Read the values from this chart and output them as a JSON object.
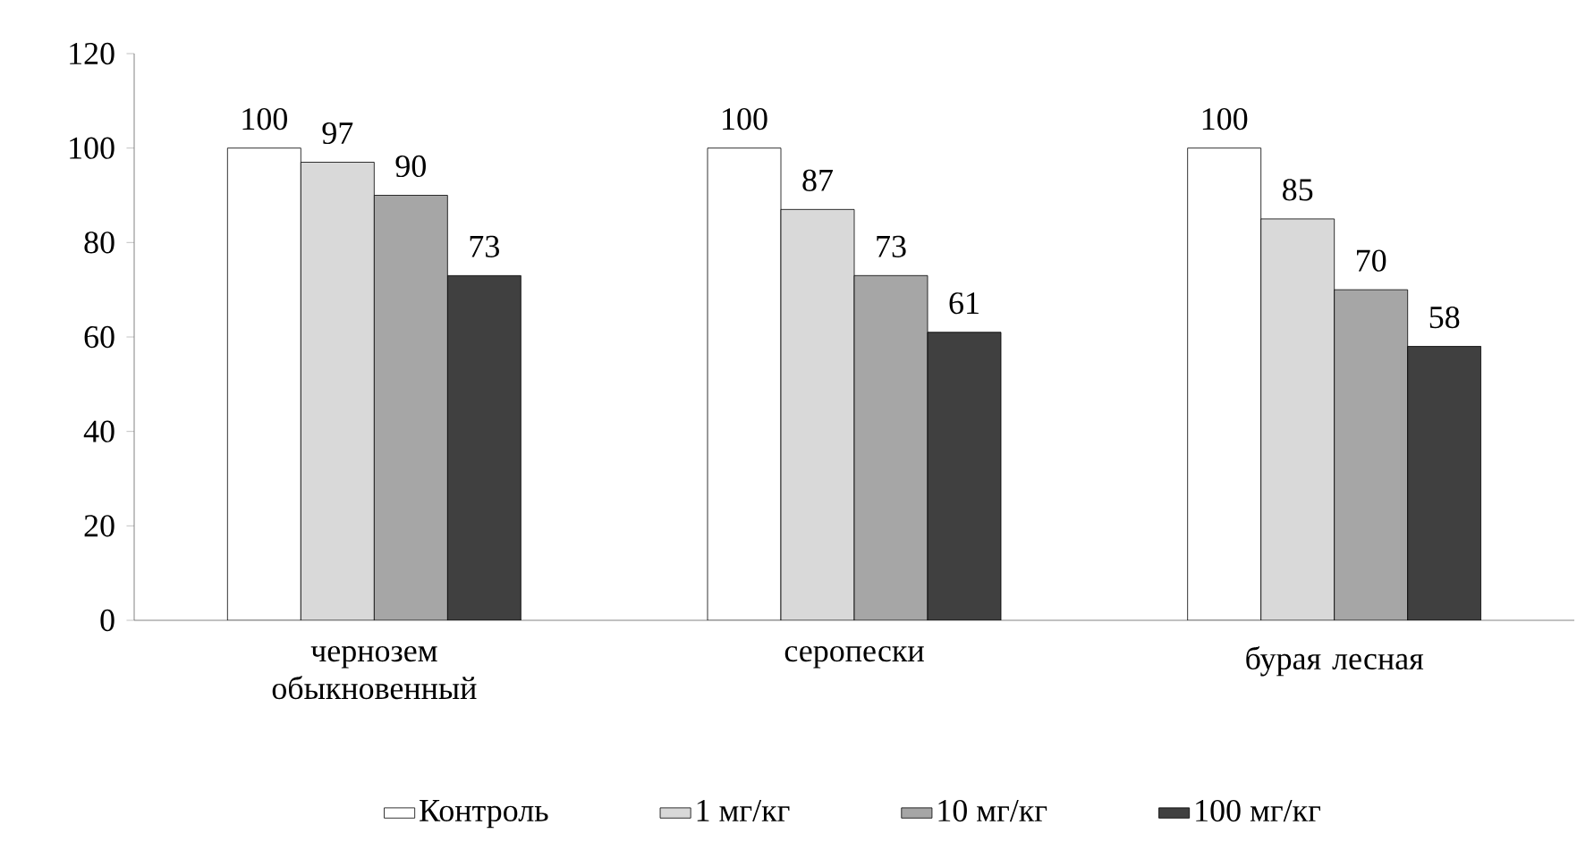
{
  "chart_data": {
    "type": "bar",
    "categories": [
      "чернозем обыкновенный",
      "серопески",
      "бурая лесная"
    ],
    "series": [
      {
        "name": "Контроль",
        "color": "#ffffff",
        "values": [
          100,
          100,
          100
        ]
      },
      {
        "name": "1 мг/кг",
        "color": "#d9d9d9",
        "values": [
          97,
          87,
          85
        ]
      },
      {
        "name": "10 мг/кг",
        "color": "#a6a6a6",
        "values": [
          90,
          73,
          70
        ]
      },
      {
        "name": "100 мг/кг",
        "color": "#404040",
        "values": [
          73,
          61,
          58
        ]
      }
    ],
    "ylim": [
      0,
      120
    ],
    "yticks": [
      0,
      20,
      40,
      60,
      80,
      100,
      120
    ],
    "data_labels": true,
    "legend": "bottom",
    "grid": false
  }
}
